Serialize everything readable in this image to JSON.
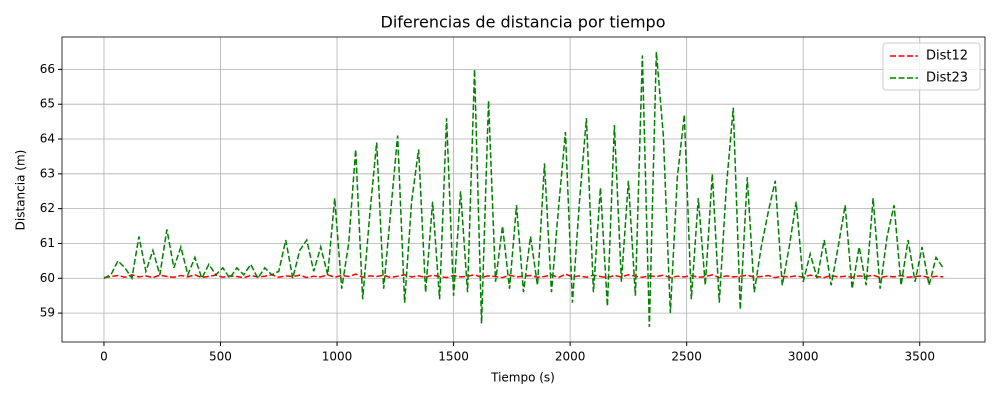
{
  "chart_data": {
    "type": "line",
    "title": "Diferencias de distancia por tiempo",
    "xlabel": "Tiempo (s)",
    "ylabel": "Distancia (m)",
    "x": [
      0,
      30,
      60,
      90,
      120,
      150,
      180,
      210,
      240,
      270,
      300,
      330,
      360,
      390,
      420,
      450,
      480,
      510,
      540,
      570,
      600,
      630,
      660,
      690,
      720,
      750,
      780,
      810,
      840,
      870,
      900,
      930,
      960,
      990,
      1020,
      1050,
      1080,
      1110,
      1140,
      1170,
      1200,
      1230,
      1260,
      1290,
      1320,
      1350,
      1380,
      1410,
      1440,
      1470,
      1500,
      1530,
      1560,
      1590,
      1620,
      1650,
      1680,
      1710,
      1740,
      1770,
      1800,
      1830,
      1860,
      1890,
      1920,
      1950,
      1980,
      2010,
      2040,
      2070,
      2100,
      2130,
      2160,
      2190,
      2220,
      2250,
      2280,
      2310,
      2340,
      2370,
      2400,
      2430,
      2460,
      2490,
      2520,
      2550,
      2580,
      2610,
      2640,
      2670,
      2700,
      2730,
      2760,
      2790,
      2820,
      2850,
      2880,
      2910,
      2940,
      2970,
      3000,
      3030,
      3060,
      3090,
      3120,
      3150,
      3180,
      3210,
      3240,
      3270,
      3300,
      3330,
      3360,
      3390,
      3420,
      3450,
      3480,
      3510,
      3540,
      3570,
      3600
    ],
    "series": [
      {
        "name": "Dist12",
        "color": "#ff0000",
        "values": [
          60.02,
          60.05,
          60.08,
          60.03,
          60.1,
          60.04,
          60.07,
          60.02,
          60.09,
          60.05,
          60.03,
          60.08,
          60.04,
          60.1,
          60.02,
          60.06,
          60.09,
          60.03,
          60.07,
          60.05,
          60.02,
          60.08,
          60.04,
          60.06,
          60.1,
          60.03,
          60.07,
          60.05,
          60.09,
          60.02,
          60.06,
          60.04,
          60.1,
          60.03,
          60.08,
          60.05,
          60.12,
          60.03,
          60.07,
          60.05,
          60.09,
          60.02,
          60.06,
          60.1,
          60.04,
          60.07,
          60.03,
          60.09,
          60.05,
          60.02,
          60.08,
          60.04,
          60.06,
          60.1,
          60.03,
          60.07,
          60.05,
          60.02,
          60.09,
          60.04,
          60.06,
          60.08,
          60.03,
          60.05,
          60.1,
          60.02,
          60.12,
          60.04,
          60.07,
          60.03,
          60.09,
          60.05,
          60.02,
          60.08,
          60.04,
          60.1,
          60.06,
          60.03,
          60.07,
          60.05,
          60.09,
          60.02,
          60.06,
          60.04,
          60.08,
          60.03,
          60.05,
          60.1,
          60.02,
          60.07,
          60.04,
          60.06,
          60.09,
          60.03,
          60.05,
          60.08,
          60.02,
          60.06,
          60.04,
          60.07,
          60.03,
          60.09,
          60.05,
          60.02,
          60.08,
          60.04,
          60.06,
          60.03,
          60.07,
          60.05,
          60.09,
          60.02,
          60.06,
          60.04,
          60.08,
          60.03,
          60.05,
          60.07,
          60.02,
          60.06,
          60.04
        ]
      },
      {
        "name": "Dist23",
        "color": "#008000",
        "values": [
          60.0,
          60.1,
          60.5,
          60.3,
          60.0,
          61.2,
          60.2,
          60.8,
          60.1,
          61.4,
          60.3,
          60.9,
          60.1,
          60.6,
          60.0,
          60.4,
          60.1,
          60.3,
          60.0,
          60.3,
          60.1,
          60.4,
          60.0,
          60.3,
          60.1,
          60.2,
          61.1,
          60.0,
          60.8,
          61.1,
          60.2,
          60.9,
          60.1,
          62.3,
          59.7,
          61.0,
          63.7,
          59.4,
          61.8,
          63.9,
          59.7,
          61.9,
          64.1,
          59.3,
          62.2,
          63.7,
          59.6,
          62.2,
          59.4,
          64.6,
          59.5,
          62.5,
          59.6,
          66.0,
          58.7,
          65.1,
          59.9,
          61.5,
          59.7,
          62.1,
          59.6,
          61.2,
          59.8,
          63.3,
          59.6,
          62.0,
          64.2,
          59.3,
          62.2,
          64.6,
          59.6,
          62.6,
          59.2,
          64.4,
          59.9,
          62.8,
          59.5,
          66.4,
          58.6,
          66.5,
          64.1,
          59.0,
          62.9,
          64.7,
          59.4,
          62.3,
          59.8,
          63.0,
          59.3,
          62.6,
          64.9,
          59.1,
          62.9,
          59.6,
          60.9,
          61.9,
          62.8,
          59.8,
          60.9,
          62.2,
          59.9,
          60.7,
          60.0,
          61.1,
          59.8,
          60.9,
          62.1,
          59.7,
          60.9,
          59.8,
          62.3,
          59.7,
          61.2,
          62.1,
          59.8,
          61.1,
          59.9,
          60.9,
          59.8,
          60.6,
          60.3
        ]
      }
    ],
    "xlim": [
      -180,
      3780
    ],
    "ylim": [
      58.17,
      66.93
    ],
    "xticks": [
      0,
      500,
      1000,
      1500,
      2000,
      2500,
      3000,
      3500
    ],
    "yticks": [
      59,
      60,
      61,
      62,
      63,
      64,
      65,
      66
    ],
    "grid": true,
    "legend": "upper right",
    "linestyle": "dashed"
  }
}
